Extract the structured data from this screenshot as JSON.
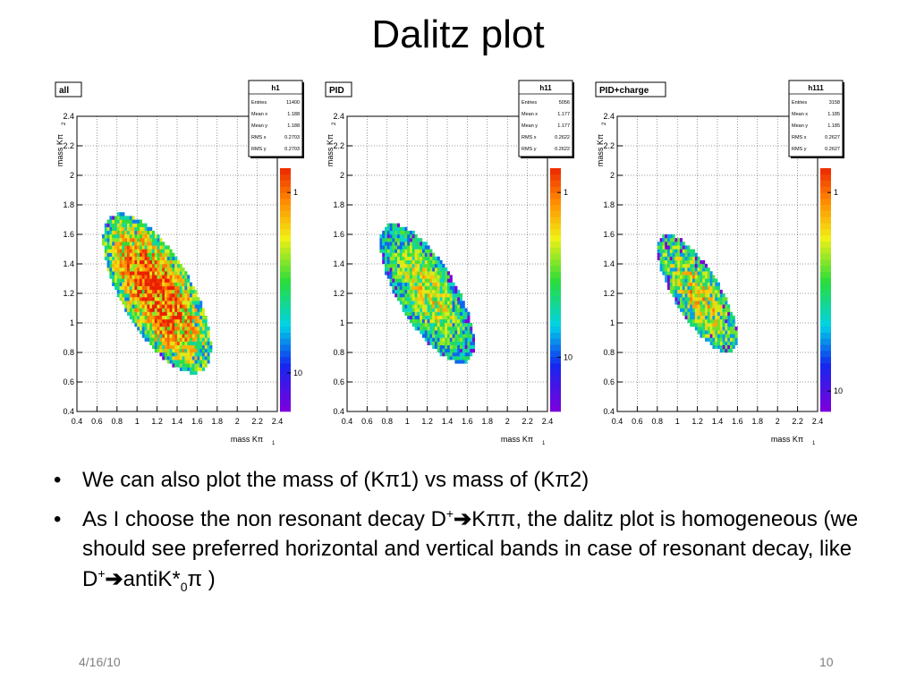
{
  "slide": {
    "title": "Dalitz plot",
    "date": "4/16/10",
    "page": "10"
  },
  "bullets": [
    {
      "text": "We can also plot the mass of (Kπ1) vs mass of (Kπ2)"
    },
    {
      "part1": "As I choose the non resonant decay D",
      "sup1": "+",
      "arrow": "➔",
      "part2": "Kππ, the dalitz plot is homogeneous (we should see preferred horizontal and vertical bands in case of resonant decay, like D",
      "sup2": "+",
      "arrow2": "➔",
      "part3": "antiK*",
      "sub": "0",
      "part4": "π )"
    }
  ],
  "chart_data": [
    {
      "type": "heatmap",
      "label": "all",
      "stats": {
        "title": "h1",
        "rows": [
          [
            "Entries",
            "11400"
          ],
          [
            "Mean x",
            "1.188"
          ],
          [
            "Mean y",
            "1.188"
          ],
          [
            "RMS x",
            "0.2703"
          ],
          [
            "RMS y",
            "0.2703"
          ]
        ]
      },
      "xlabel": "mass Kπ",
      "xlabel_sub": "1",
      "ylabel": "mass Kπ",
      "ylabel_sub": "2",
      "xlim": [
        0.4,
        2.4
      ],
      "ylim": [
        0.4,
        2.4
      ],
      "xticks": [
        "0.4",
        "0.6",
        "0.8",
        "1",
        "1.2",
        "1.4",
        "1.6",
        "1.8",
        "2",
        "2.2",
        "2.4"
      ],
      "yticks": [
        "0.4",
        "0.6",
        "0.8",
        "1",
        "1.2",
        "1.4",
        "1.6",
        "1.8",
        "2",
        "2.2",
        "2.4"
      ],
      "colorbar_ticks": [
        {
          "label": "1",
          "value": 1
        },
        {
          "label": "10",
          "value": 10
        }
      ],
      "colorbar_scale": "log",
      "colorbar_max": 14,
      "grid": true,
      "region": {
        "center_x": 1.2,
        "center_y": 1.2,
        "angle_deg": -45,
        "major_rms": 0.45,
        "minor_rms": 0.2
      },
      "density_peak": 14,
      "spread": 1.55
    },
    {
      "type": "heatmap",
      "label": "PID",
      "stats": {
        "title": "h11",
        "rows": [
          [
            "Entries",
            "5056"
          ],
          [
            "Mean x",
            "1.177"
          ],
          [
            "Mean y",
            "1.177"
          ],
          [
            "RMS x",
            "0.2622"
          ],
          [
            "RMS y",
            "0.2622"
          ]
        ]
      },
      "xlabel": "mass Kπ",
      "xlabel_sub": "1",
      "ylabel": "mass Kπ",
      "ylabel_sub": "2",
      "xlim": [
        0.4,
        2.4
      ],
      "ylim": [
        0.4,
        2.4
      ],
      "xticks": [
        "0.4",
        "0.6",
        "0.8",
        "1",
        "1.2",
        "1.4",
        "1.6",
        "1.8",
        "2",
        "2.2",
        "2.4"
      ],
      "yticks": [
        "0.4",
        "0.6",
        "0.8",
        "1",
        "1.2",
        "1.4",
        "1.6",
        "1.8",
        "2",
        "2.2",
        "2.4"
      ],
      "colorbar_ticks": [
        {
          "label": "1",
          "value": 1
        },
        {
          "label": "10",
          "value": 10
        }
      ],
      "colorbar_scale": "log",
      "colorbar_max": 18,
      "grid": true,
      "region": {
        "center_x": 1.2,
        "center_y": 1.2,
        "angle_deg": -45,
        "major_rms": 0.44,
        "minor_rms": 0.18
      },
      "density_peak": 8,
      "spread": 1.4
    },
    {
      "type": "heatmap",
      "label": "PID+charge",
      "stats": {
        "title": "h111",
        "rows": [
          [
            "Entries",
            "3158"
          ],
          [
            "Mean x",
            "1.185"
          ],
          [
            "Mean y",
            "1.185"
          ],
          [
            "RMS x",
            "0.2627"
          ],
          [
            "RMS y",
            "0.2627"
          ]
        ]
      },
      "xlabel": "mass Kπ",
      "xlabel_sub": "1",
      "ylabel": "mass Kπ",
      "ylabel_sub": "2",
      "xlim": [
        0.4,
        2.4
      ],
      "ylim": [
        0.4,
        2.4
      ],
      "xticks": [
        "0.4",
        "0.6",
        "0.8",
        "1",
        "1.2",
        "1.4",
        "1.6",
        "1.8",
        "2",
        "2.2",
        "2.4"
      ],
      "yticks": [
        "0.4",
        "0.6",
        "0.8",
        "1",
        "1.2",
        "1.4",
        "1.6",
        "1.8",
        "2",
        "2.2",
        "2.4"
      ],
      "colorbar_ticks": [
        {
          "label": "1",
          "value": 1
        },
        {
          "label": "10",
          "value": 10
        }
      ],
      "colorbar_scale": "log",
      "colorbar_max": 11,
      "grid": true,
      "region": {
        "center_x": 1.2,
        "center_y": 1.2,
        "angle_deg": -45,
        "major_rms": 0.42,
        "minor_rms": 0.16
      },
      "density_peak": 6,
      "spread": 1.25
    }
  ]
}
